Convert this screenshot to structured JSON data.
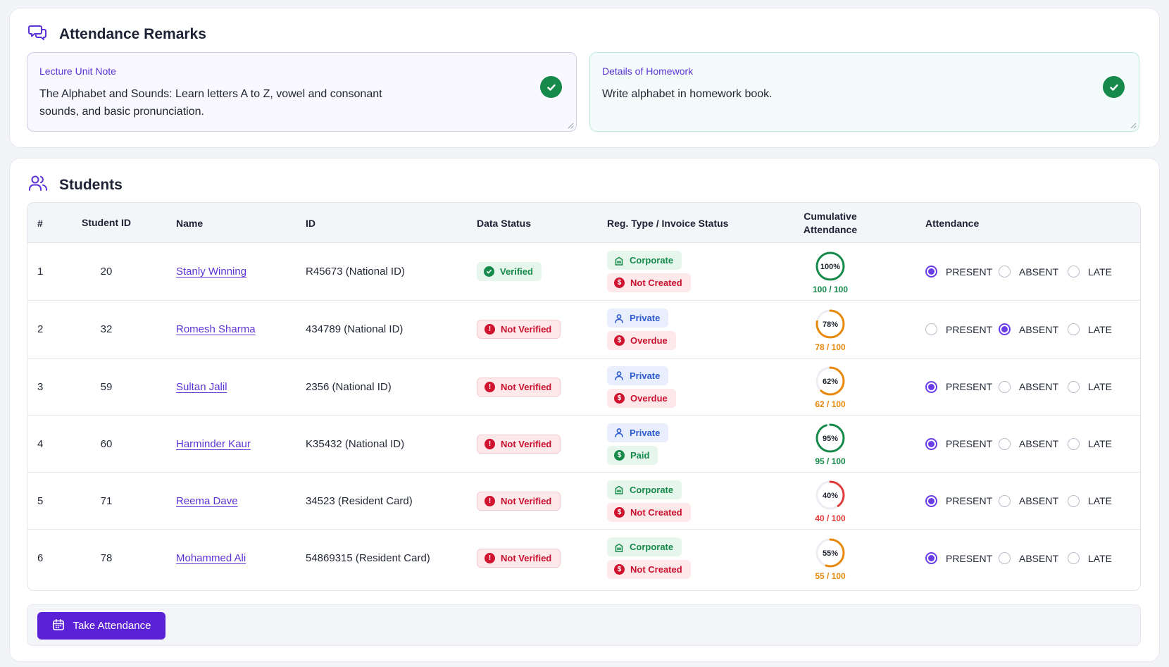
{
  "remarks": {
    "title": "Attendance Remarks",
    "icon": "chat-bubbles-icon",
    "lecture": {
      "label": "Lecture Unit Note",
      "text": "The Alphabet and Sounds: Learn letters A to Z, vowel and consonant sounds, and basic pronunciation."
    },
    "homework": {
      "label": "Details of Homework",
      "text": "Write alphabet in homework book."
    }
  },
  "students": {
    "title": "Students",
    "icon": "users-icon",
    "columns": [
      "#",
      "Student ID",
      "Name",
      "ID",
      "Data Status",
      "Reg. Type / Invoice Status",
      "Cumulative Attendance",
      "Attendance"
    ],
    "attendance_options": [
      "PRESENT",
      "ABSENT",
      "LATE"
    ],
    "rows": [
      {
        "num": "1",
        "student_id": "20",
        "name": "Stanly Winning",
        "id": "R45673 (National ID)",
        "data_status": "Verified",
        "verified": true,
        "reg_type": "Corporate",
        "invoice": "Not Created",
        "pct_label": "100%",
        "frac": "100 / 100",
        "pct": 100,
        "color": "#168a4a",
        "attendance": "PRESENT"
      },
      {
        "num": "2",
        "student_id": "32",
        "name": "Romesh Sharma",
        "id": "434789 (National ID)",
        "data_status": "Not Verified",
        "verified": false,
        "reg_type": "Private",
        "invoice": "Overdue",
        "pct_label": "78%",
        "frac": "78 / 100",
        "pct": 78,
        "color": "#e8890c",
        "attendance": "ABSENT"
      },
      {
        "num": "3",
        "student_id": "59",
        "name": "Sultan Jalil",
        "id": "2356 (National ID)",
        "data_status": "Not Verified",
        "verified": false,
        "reg_type": "Private",
        "invoice": "Overdue",
        "pct_label": "62%",
        "frac": "62 / 100",
        "pct": 62,
        "color": "#e8890c",
        "attendance": "PRESENT"
      },
      {
        "num": "4",
        "student_id": "60",
        "name": "Harminder Kaur",
        "id": "K35432 (National ID)",
        "data_status": "Not Verified",
        "verified": false,
        "reg_type": "Private",
        "invoice": "Paid",
        "pct_label": "95%",
        "frac": "95 / 100",
        "pct": 95,
        "color": "#168a4a",
        "attendance": "PRESENT"
      },
      {
        "num": "5",
        "student_id": "71",
        "name": "Reema Dave",
        "id": "34523 (Resident Card)",
        "data_status": "Not Verified",
        "verified": false,
        "reg_type": "Corporate",
        "invoice": "Not Created",
        "pct_label": "40%",
        "frac": "40 / 100",
        "pct": 40,
        "color": "#e23b3b",
        "attendance": "PRESENT"
      },
      {
        "num": "6",
        "student_id": "78",
        "name": "Mohammed Ali",
        "id": "54869315 (Resident Card)",
        "data_status": "Not Verified",
        "verified": false,
        "reg_type": "Corporate",
        "invoice": "Not Created",
        "pct_label": "55%",
        "frac": "55 / 100",
        "pct": 55,
        "color": "#e8890c",
        "attendance": "PRESENT"
      }
    ]
  },
  "actions": {
    "take_attendance": "Take Attendance",
    "icon": "calendar-icon"
  },
  "colors": {
    "accent": "#5b21d6",
    "success": "#168a4a",
    "warning": "#e8890c",
    "danger": "#d0142f"
  }
}
